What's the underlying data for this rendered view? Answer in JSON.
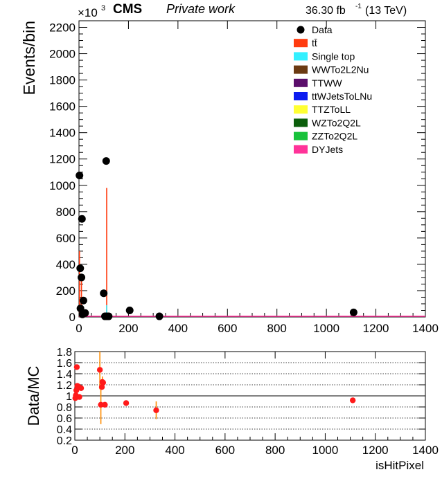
{
  "header": {
    "experiment": "CMS",
    "label": "Private work",
    "lumi_value": "36.30 fb",
    "lumi_exp": "-1",
    "energy": "(13 TeV)",
    "y_multiplier_base": "×10",
    "y_multiplier_exp": "3"
  },
  "legend": [
    {
      "name": "Data",
      "marker": "dot",
      "color": "#000000"
    },
    {
      "name": "tt̄",
      "marker": "box",
      "color": "#ff3b0f"
    },
    {
      "name": "Single top",
      "marker": "box",
      "color": "#33f0ff"
    },
    {
      "name": "WWTo2L2Nu",
      "marker": "box",
      "color": "#6b3a12"
    },
    {
      "name": "TTWW",
      "marker": "box",
      "color": "#5b0e6b"
    },
    {
      "name": "ttWJetsToLNu",
      "marker": "box",
      "color": "#0c1cf0"
    },
    {
      "name": "TTZToLL",
      "marker": "box",
      "color": "#ffff33"
    },
    {
      "name": "WZTo2Q2L",
      "marker": "box",
      "color": "#0b5e0b"
    },
    {
      "name": "ZZTo2Q2L",
      "marker": "box",
      "color": "#18c23b"
    },
    {
      "name": "DYJets",
      "marker": "box",
      "color": "#ff3399"
    }
  ],
  "chart_data": [
    {
      "type": "scatter",
      "ylabel": "Events/bin",
      "xlim": [
        0,
        1400
      ],
      "ylim": [
        0,
        2250
      ],
      "xticks": [
        0,
        200,
        400,
        600,
        800,
        1000,
        1200,
        1400
      ],
      "yticks": [
        0,
        200,
        400,
        600,
        800,
        1000,
        1200,
        1400,
        1600,
        1800,
        2000,
        2200
      ],
      "series": [
        {
          "name": "Data",
          "points": [
            {
              "x": 2,
              "y": 1075
            },
            {
              "x": 5,
              "y": 370
            },
            {
              "x": 6,
              "y": 65
            },
            {
              "x": 10,
              "y": 300
            },
            {
              "x": 12,
              "y": 745
            },
            {
              "x": 14,
              "y": 20
            },
            {
              "x": 18,
              "y": 125
            },
            {
              "x": 25,
              "y": 30
            },
            {
              "x": 100,
              "y": 180
            },
            {
              "x": 105,
              "y": 5
            },
            {
              "x": 110,
              "y": 1185
            },
            {
              "x": 112,
              "y": 5
            },
            {
              "x": 120,
              "y": 5
            },
            {
              "x": 205,
              "y": 50
            },
            {
              "x": 325,
              "y": 5
            },
            {
              "x": 1110,
              "y": 35
            }
          ]
        },
        {
          "name": "tt̄",
          "bars": [
            {
              "x": 2,
              "y": 500
            },
            {
              "x": 10,
              "y": 300
            },
            {
              "x": 112,
              "y": 980
            }
          ]
        },
        {
          "name": "Single top",
          "bars": [
            {
              "x": 112,
              "y": 90
            }
          ]
        }
      ]
    },
    {
      "type": "scatter",
      "ylabel": "Data/MC",
      "xlabel": "isHitPixel",
      "xlim": [
        0,
        1400
      ],
      "ylim": [
        0.2,
        1.8
      ],
      "xticks": [
        0,
        200,
        400,
        600,
        800,
        1000,
        1200,
        1400
      ],
      "yticks": [
        0.2,
        0.4,
        0.6,
        0.8,
        1,
        1.2,
        1.4,
        1.6,
        1.8
      ],
      "reference_line": 1,
      "points": [
        {
          "x": 2,
          "y": 0.96
        },
        {
          "x": 4,
          "y": 1.01
        },
        {
          "x": 6,
          "y": 1.1
        },
        {
          "x": 8,
          "y": 1.52
        },
        {
          "x": 10,
          "y": 1.18
        },
        {
          "x": 14,
          "y": 1.17
        },
        {
          "x": 18,
          "y": 0.98
        },
        {
          "x": 25,
          "y": 1.14
        },
        {
          "x": 100,
          "y": 1.47,
          "err": 0.35
        },
        {
          "x": 104,
          "y": 0.84,
          "err": 0.35
        },
        {
          "x": 108,
          "y": 1.16
        },
        {
          "x": 110,
          "y": 1.25,
          "err": 0.1
        },
        {
          "x": 113,
          "y": 1.24
        },
        {
          "x": 120,
          "y": 0.84
        },
        {
          "x": 205,
          "y": 0.87
        },
        {
          "x": 325,
          "y": 0.74,
          "err": 0.16
        },
        {
          "x": 1110,
          "y": 0.92
        }
      ]
    }
  ]
}
